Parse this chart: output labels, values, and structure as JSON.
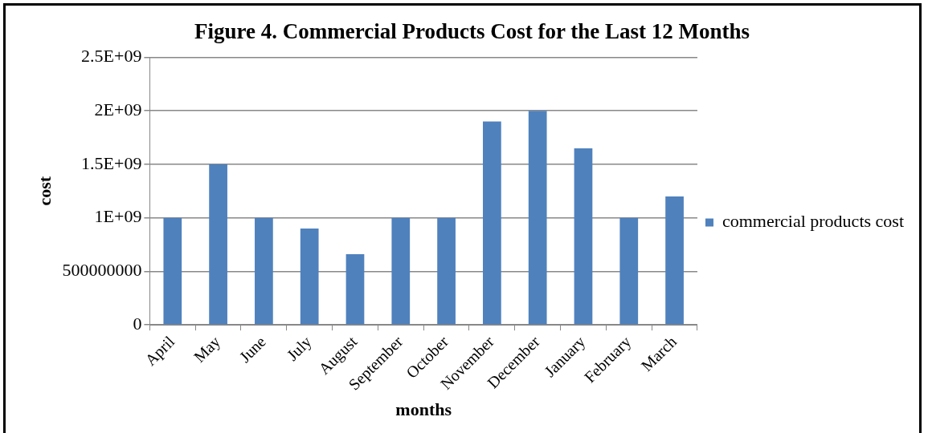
{
  "chart_data": {
    "type": "bar",
    "title": "Figure 4. Commercial Products Cost for the Last 12 Months",
    "xlabel": "months",
    "ylabel": "cost",
    "categories": [
      "April",
      "May",
      "June",
      "July",
      "August",
      "September",
      "October",
      "November",
      "December",
      "January",
      "February",
      "March"
    ],
    "series": [
      {
        "name": "commercial products cost",
        "color": "#4f81bd",
        "values": [
          1000000000,
          1500000000,
          1000000000,
          900000000,
          660000000,
          1000000000,
          1000000000,
          1900000000,
          2000000000,
          1650000000,
          1000000000,
          1200000000
        ]
      }
    ],
    "ylim": [
      0,
      2500000000
    ],
    "yticks": [
      0,
      500000000,
      {
        "value": 1000000000,
        "label": "1E+09"
      },
      {
        "value": 1500000000,
        "label": "1.5E+09"
      },
      {
        "value": 2000000000,
        "label": "2E+09"
      },
      {
        "value": 2500000000,
        "label": "2.5E+09"
      }
    ],
    "grid": "y",
    "legend": "right"
  }
}
